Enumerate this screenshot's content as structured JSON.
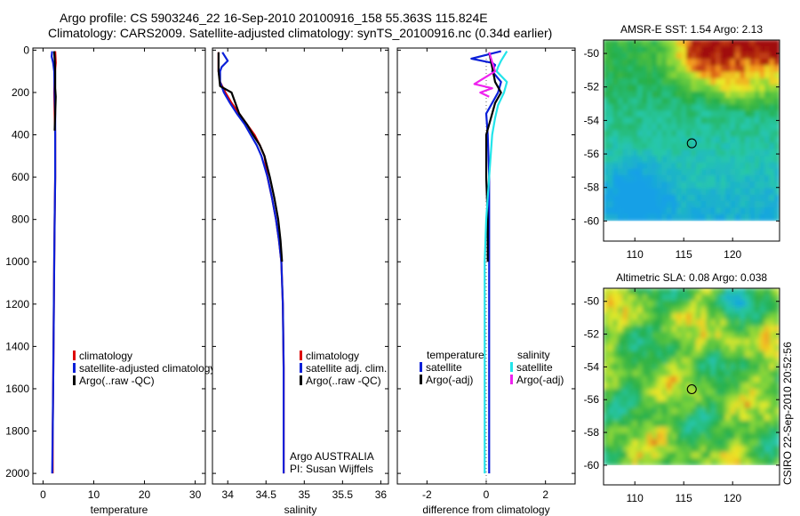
{
  "header": {
    "line1": "Argo profile: CS 5903246_22 16-Sep-2010 20100916_158 55.363S 115.824E",
    "line2": "Climatology: CARS2009. Satellite-adjusted climatology: synTS_20100916.nc (0.34d earlier)"
  },
  "side_stamp": "CSIRO 22-Sep-2010 20:52:56",
  "colors": {
    "climatology": "#dd0000",
    "satellite": "#0a1fd8",
    "argo": "#000000",
    "salinity_satellite": "#22e4ea",
    "salinity_argo": "#ee22ee"
  },
  "chart_data": [
    {
      "type": "line",
      "id": "temperature",
      "xlabel": "temperature",
      "ylabel": "",
      "xlim": [
        -2,
        32
      ],
      "ylim": [
        2050,
        -10
      ],
      "xticks": [
        0,
        10,
        20,
        30
      ],
      "yticks": [
        0,
        200,
        400,
        600,
        800,
        1000,
        1200,
        1400,
        1600,
        1800,
        2000
      ],
      "series": [
        {
          "name": "climatology",
          "color_key": "climatology",
          "points": [
            [
              2.4,
              5
            ],
            [
              2.5,
              60
            ],
            [
              2.3,
              120
            ],
            [
              2.2,
              200
            ],
            [
              2.3,
              300
            ],
            [
              2.4,
              400
            ],
            [
              2.4,
              600
            ],
            [
              2.3,
              800
            ],
            [
              2.2,
              1000
            ],
            [
              2.1,
              1300
            ],
            [
              2.0,
              1600
            ],
            [
              1.9,
              1800
            ],
            [
              1.9,
              2000
            ]
          ]
        },
        {
          "name": "satellite-adjusted climatology",
          "color_key": "satellite",
          "points": [
            [
              1.8,
              5
            ],
            [
              1.7,
              30
            ],
            [
              2.0,
              60
            ],
            [
              2.2,
              100
            ],
            [
              2.3,
              200
            ],
            [
              2.4,
              300
            ],
            [
              2.4,
              400
            ],
            [
              2.4,
              600
            ],
            [
              2.3,
              800
            ],
            [
              2.2,
              1000
            ],
            [
              2.1,
              1300
            ],
            [
              2.0,
              1600
            ],
            [
              1.9,
              1800
            ],
            [
              1.8,
              2000
            ]
          ]
        },
        {
          "name": "Argo(..raw -QC)",
          "color_key": "argo",
          "points": [
            [
              2.2,
              5
            ],
            [
              2.3,
              40
            ],
            [
              2.4,
              100
            ],
            [
              2.4,
              180
            ],
            [
              2.5,
              220
            ],
            [
              2.4,
              300
            ],
            [
              2.3,
              380
            ]
          ]
        }
      ],
      "legend": [
        "climatology",
        "satellite-adjusted climatology",
        "Argo(..raw -QC)"
      ],
      "legend_position": "lower-middle"
    },
    {
      "type": "line",
      "id": "salinity",
      "xlabel": "salinity",
      "ylabel": "",
      "xlim": [
        33.8,
        36.1
      ],
      "ylim": [
        2050,
        -10
      ],
      "xticks": [
        34,
        34.5,
        35,
        35.5,
        36
      ],
      "xtick_labels": [
        "34",
        "34.5",
        "35",
        "35.5",
        "36"
      ],
      "series": [
        {
          "name": "climatology",
          "color_key": "climatology",
          "points": [
            [
              33.88,
              10
            ],
            [
              33.88,
              50
            ],
            [
              33.88,
              100
            ],
            [
              33.9,
              150
            ],
            [
              33.97,
              200
            ],
            [
              34.05,
              250
            ],
            [
              34.15,
              300
            ],
            [
              34.25,
              350
            ],
            [
              34.35,
              400
            ],
            [
              34.42,
              450
            ],
            [
              34.48,
              500
            ],
            [
              34.52,
              600
            ],
            [
              34.58,
              700
            ],
            [
              34.63,
              800
            ],
            [
              34.67,
              900
            ],
            [
              34.7,
              1000
            ],
            [
              34.72,
              1200
            ],
            [
              34.73,
              1500
            ],
            [
              34.73,
              1800
            ],
            [
              34.73,
              2000
            ]
          ]
        },
        {
          "name": "satellite adj. clim.",
          "color_key": "satellite",
          "points": [
            [
              33.93,
              10
            ],
            [
              34.0,
              50
            ],
            [
              33.92,
              80
            ],
            [
              33.9,
              100
            ],
            [
              33.9,
              150
            ],
            [
              33.95,
              200
            ],
            [
              34.03,
              250
            ],
            [
              34.12,
              300
            ],
            [
              34.22,
              350
            ],
            [
              34.3,
              400
            ],
            [
              34.38,
              450
            ],
            [
              34.44,
              500
            ],
            [
              34.52,
              600
            ],
            [
              34.58,
              700
            ],
            [
              34.63,
              800
            ],
            [
              34.67,
              900
            ],
            [
              34.7,
              1000
            ],
            [
              34.72,
              1200
            ],
            [
              34.73,
              1500
            ],
            [
              34.73,
              1800
            ],
            [
              34.73,
              2000
            ]
          ]
        },
        {
          "name": "Argo(..raw -QC)",
          "color_key": "argo",
          "points": [
            [
              33.88,
              10
            ],
            [
              33.88,
              100
            ],
            [
              33.9,
              170
            ],
            [
              34.05,
              200
            ],
            [
              34.08,
              230
            ],
            [
              34.15,
              300
            ],
            [
              34.25,
              350
            ],
            [
              34.33,
              400
            ],
            [
              34.42,
              450
            ],
            [
              34.48,
              500
            ],
            [
              34.55,
              600
            ],
            [
              34.61,
              700
            ],
            [
              34.66,
              800
            ],
            [
              34.69,
              900
            ],
            [
              34.71,
              1000
            ]
          ]
        }
      ],
      "legend": [
        "climatology",
        "satellite adj. clim.",
        "Argo(..raw -QC)"
      ],
      "legend_position": "lower-right",
      "annotation": [
        "Argo AUSTRALIA",
        "PI: Susan Wijffels"
      ]
    },
    {
      "type": "line",
      "id": "difference",
      "xlabel": "difference from climatology",
      "ylabel": "",
      "xlim": [
        -3,
        3
      ],
      "ylim": [
        2050,
        -10
      ],
      "xticks": [
        -2,
        0,
        2
      ],
      "xtick_labels": [
        "-2",
        "0",
        "2"
      ],
      "series": [
        {
          "name": "temperature satellite",
          "color_key": "satellite",
          "points": [
            [
              0.5,
              5
            ],
            [
              -0.5,
              40
            ],
            [
              0.2,
              60
            ],
            [
              0.3,
              70
            ],
            [
              0.2,
              100
            ],
            [
              0.5,
              150
            ],
            [
              0.4,
              200
            ],
            [
              0.2,
              250
            ],
            [
              0.0,
              300
            ],
            [
              0.05,
              400
            ],
            [
              0.1,
              600
            ],
            [
              0.1,
              1000
            ],
            [
              0.1,
              1500
            ],
            [
              0.1,
              2000
            ]
          ]
        },
        {
          "name": "temperature Argo(-adj)",
          "color_key": "argo",
          "points": [
            [
              0.1,
              10
            ],
            [
              0.2,
              80
            ],
            [
              0.3,
              150
            ],
            [
              0.5,
              200
            ],
            [
              0.3,
              250
            ],
            [
              0.2,
              300
            ],
            [
              0.0,
              400
            ],
            [
              0.0,
              600
            ],
            [
              0.05,
              800
            ],
            [
              0.05,
              1000
            ]
          ]
        },
        {
          "name": "salinity satellite",
          "color_key": "salinity_satellite",
          "points": [
            [
              0.7,
              5
            ],
            [
              0.5,
              50
            ],
            [
              0.4,
              80
            ],
            [
              0.35,
              100
            ],
            [
              0.7,
              150
            ],
            [
              0.6,
              200
            ],
            [
              0.4,
              260
            ],
            [
              0.3,
              320
            ],
            [
              0.2,
              400
            ],
            [
              0.1,
              600
            ],
            [
              0.0,
              800
            ],
            [
              -0.05,
              1000
            ],
            [
              -0.05,
              1500
            ],
            [
              -0.05,
              2000
            ]
          ]
        },
        {
          "name": "salinity Argo(-adj)",
          "color_key": "salinity_argo",
          "points": [
            [
              0.1,
              10
            ],
            [
              0.3,
              100
            ],
            [
              -0.4,
              160
            ],
            [
              0.2,
              180
            ],
            [
              -0.2,
              200
            ],
            [
              0.1,
              220
            ]
          ]
        }
      ],
      "legend_groups": [
        {
          "title": "temperature",
          "items": [
            "satellite",
            "Argo(-adj)"
          ],
          "color_keys": [
            "satellite",
            "argo"
          ]
        },
        {
          "title": "salinity",
          "items": [
            "satellite",
            "Argo(-adj)"
          ],
          "color_keys": [
            "salinity_satellite",
            "salinity_argo"
          ]
        }
      ],
      "legend_position": "lower"
    },
    {
      "type": "heatmap",
      "id": "sst",
      "title": "AMSR-E SST: 1.54 Argo: 2.13",
      "xlim": [
        106.8,
        124.8
      ],
      "ylim": [
        -61.2,
        -49.2
      ],
      "xticks": [
        110,
        115,
        120
      ],
      "yticks": [
        -50,
        -52,
        -54,
        -56,
        -58,
        -60
      ],
      "ytick_labels": [
        "-50",
        "-52",
        "-54",
        "-56",
        "-58",
        "-60"
      ],
      "float_position": [
        115.824,
        -55.363
      ],
      "no_data_below_lat": -60
    },
    {
      "type": "heatmap",
      "id": "sla",
      "title": "Altimetric SLA: 0.08 Argo: 0.038",
      "xlim": [
        106.8,
        124.8
      ],
      "ylim": [
        -61.2,
        -49.2
      ],
      "xticks": [
        110,
        115,
        120
      ],
      "yticks": [
        -50,
        -52,
        -54,
        -56,
        -58,
        -60
      ],
      "ytick_labels": [
        "-50",
        "-52",
        "-54",
        "-56",
        "-58",
        "-60"
      ],
      "float_position": [
        115.824,
        -55.363
      ],
      "no_data_below_lat": -60
    }
  ]
}
